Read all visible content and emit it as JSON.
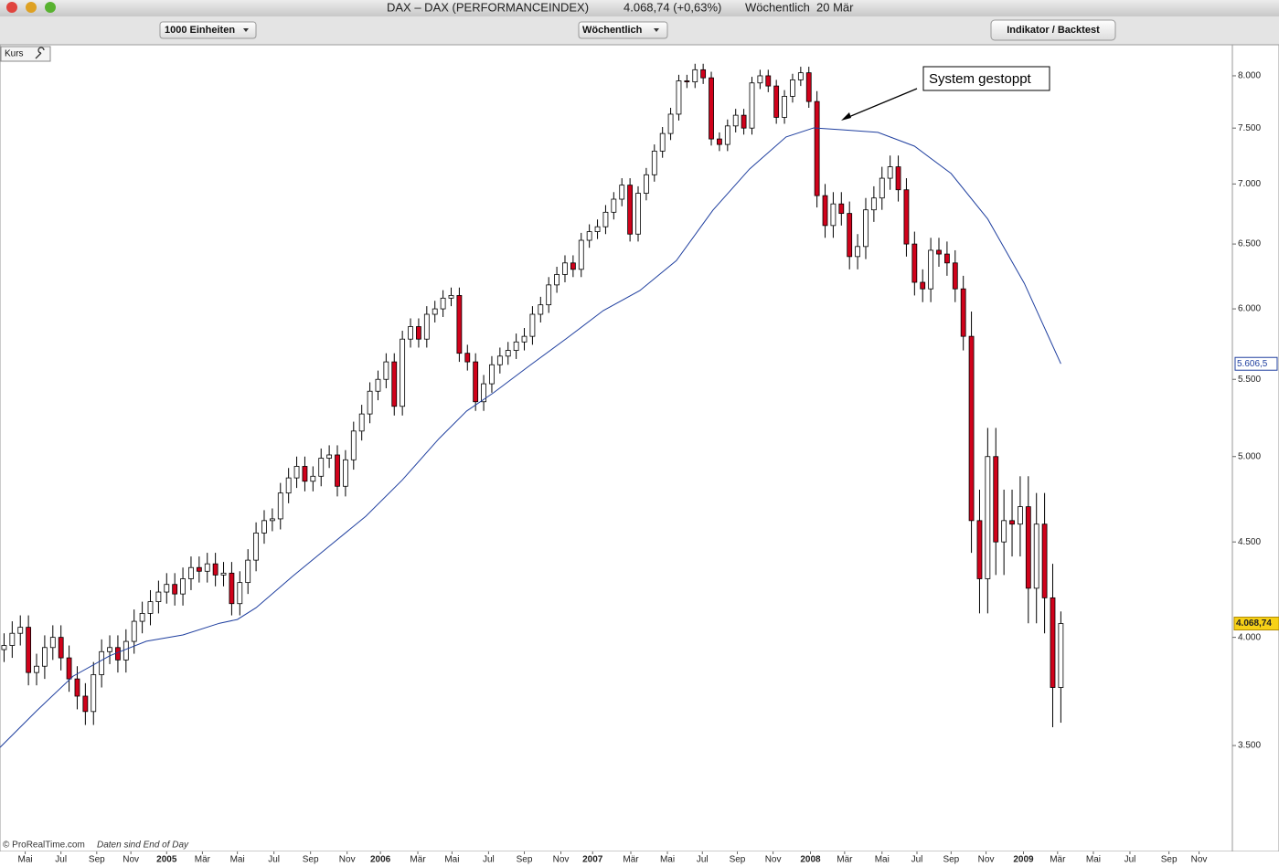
{
  "window": {
    "title": "DAX – DAX (PERFORMANCEINDEX)",
    "quote": "4.068,74 (+0,63%)",
    "period": "Wöchentlich  20 Mär"
  },
  "toolbar": {
    "units": "1000 Einheiten",
    "interval": "Wöchentlich",
    "indicator": "Indikator / Backtest"
  },
  "footer": {
    "source": "© ProRealTime.com",
    "note": "Daten sind End of Day"
  },
  "chart_data": {
    "type": "candlestick",
    "panel": "Kurs",
    "annotation": "System gestoppt",
    "log_scale": true,
    "xlim": [
      -0.5,
      151.1
    ],
    "xticks": [
      {
        "value": 2.6,
        "label": "Mai"
      },
      {
        "value": 7.0,
        "label": "Jul"
      },
      {
        "value": 11.4,
        "label": "Sep"
      },
      {
        "value": 15.6,
        "label": "Nov"
      },
      {
        "value": 20.0,
        "label": "2005"
      },
      {
        "value": 24.4,
        "label": "Mär"
      },
      {
        "value": 28.7,
        "label": "Mai"
      },
      {
        "value": 33.2,
        "label": "Jul"
      },
      {
        "value": 37.7,
        "label": "Sep"
      },
      {
        "value": 42.2,
        "label": "Nov"
      },
      {
        "value": 46.3,
        "label": "2006"
      },
      {
        "value": 50.9,
        "label": "Mär"
      },
      {
        "value": 55.1,
        "label": "Mai"
      },
      {
        "value": 59.6,
        "label": "Jul"
      },
      {
        "value": 64.0,
        "label": "Sep"
      },
      {
        "value": 68.5,
        "label": "Nov"
      },
      {
        "value": 72.4,
        "label": "2007"
      },
      {
        "value": 77.1,
        "label": "Mär"
      },
      {
        "value": 81.6,
        "label": "Mai"
      },
      {
        "value": 85.9,
        "label": "Jul"
      },
      {
        "value": 90.2,
        "label": "Sep"
      },
      {
        "value": 94.6,
        "label": "Nov"
      },
      {
        "value": 99.2,
        "label": "2008"
      },
      {
        "value": 103.4,
        "label": "Mär"
      },
      {
        "value": 108.0,
        "label": "Mai"
      },
      {
        "value": 112.3,
        "label": "Jul"
      },
      {
        "value": 116.5,
        "label": "Sep"
      },
      {
        "value": 120.8,
        "label": "Nov"
      },
      {
        "value": 125.4,
        "label": "2009"
      },
      {
        "value": 129.6,
        "label": "Mär"
      },
      {
        "value": 134.0,
        "label": "Mai"
      },
      {
        "value": 138.5,
        "label": "Jul"
      },
      {
        "value": 143.3,
        "label": "Sep"
      },
      {
        "value": 147.0,
        "label": "Nov"
      }
    ],
    "ylim": [
      3071,
      8303
    ],
    "yticks": [
      {
        "value": 3500,
        "label": "3.500"
      },
      {
        "value": 4000,
        "label": "4.000"
      },
      {
        "value": 4500,
        "label": "4.500"
      },
      {
        "value": 5000,
        "label": "5.000"
      },
      {
        "value": 5500,
        "label": "5.500"
      },
      {
        "value": 6000,
        "label": "6.000"
      },
      {
        "value": 6500,
        "label": "6.500"
      },
      {
        "value": 7000,
        "label": "7.000"
      },
      {
        "value": 7500,
        "label": "7.500"
      },
      {
        "value": 8000,
        "label": "8.000"
      }
    ],
    "candles": {
      "up_color": "#ffffff",
      "down_color": "#d0021b",
      "close_label": "4.068,74",
      "open": [
        3940,
        3960,
        4020,
        4050,
        3830,
        3860,
        3950,
        4000,
        3900,
        3800,
        3720,
        3650,
        3820,
        3930,
        3950,
        3890,
        3980,
        4080,
        4120,
        4180,
        4230,
        4270,
        4220,
        4300,
        4360,
        4340,
        4380,
        4320,
        4330,
        4170,
        4280,
        4400,
        4550,
        4620,
        4630,
        4780,
        4870,
        4940,
        4850,
        4880,
        4990,
        5010,
        4820,
        4980,
        5160,
        5270,
        5420,
        5500,
        5620,
        5320,
        5780,
        5870,
        5780,
        5960,
        6000,
        6080,
        6100,
        5680,
        5620,
        5350,
        5470,
        5600,
        5660,
        5700,
        5760,
        5800,
        5960,
        6030,
        6180,
        6260,
        6350,
        6300,
        6530,
        6600,
        6640,
        6760,
        6870,
        6990,
        6580,
        6920,
        7080,
        7290,
        7450,
        7630,
        7950,
        7940,
        8060,
        7980,
        7400,
        7350,
        7520,
        7620,
        7500,
        7930,
        8000,
        7900,
        7600,
        7800,
        7960,
        8030,
        7750,
        6900,
        6650,
        6830,
        6750,
        6400,
        6480,
        6780,
        6880,
        7050,
        7150,
        6950,
        6500,
        6200,
        6150,
        6450,
        6420,
        6350,
        6150,
        5800,
        4620,
        4300,
        5000,
        4500,
        4620,
        4600,
        4700,
        4250,
        4600,
        4200,
        3760
      ],
      "high": [
        4020,
        4080,
        4110,
        4110,
        3920,
        4010,
        4060,
        4060,
        3960,
        3860,
        3780,
        3880,
        3990,
        4010,
        4010,
        4040,
        4140,
        4180,
        4240,
        4290,
        4330,
        4330,
        4360,
        4420,
        4420,
        4440,
        4440,
        4390,
        4390,
        4340,
        4460,
        4610,
        4680,
        4690,
        4840,
        4930,
        5000,
        5000,
        4940,
        5050,
        5070,
        5070,
        5040,
        5220,
        5330,
        5480,
        5560,
        5680,
        5680,
        5840,
        5930,
        5930,
        6020,
        6060,
        6140,
        6160,
        6160,
        5740,
        5680,
        5530,
        5660,
        5720,
        5760,
        5820,
        5860,
        6020,
        6090,
        6240,
        6320,
        6410,
        6410,
        6590,
        6660,
        6700,
        6820,
        6930,
        7050,
        7050,
        6980,
        7140,
        7350,
        7510,
        7690,
        8010,
        8010,
        8120,
        8120,
        8040,
        7460,
        7580,
        7680,
        7680,
        7990,
        8060,
        8060,
        7960,
        7860,
        8020,
        8090,
        8090,
        7850,
        7000,
        6930,
        6930,
        6850,
        6580,
        6880,
        6980,
        7150,
        7250,
        7250,
        7050,
        6600,
        6300,
        6550,
        6550,
        6520,
        6450,
        6250,
        5980,
        4800,
        5180,
        5180,
        4800,
        4800,
        4880,
        4880,
        4780,
        4780,
        4380,
        4130
      ],
      "low": [
        3880,
        3900,
        3960,
        3770,
        3770,
        3800,
        3890,
        3840,
        3740,
        3660,
        3590,
        3590,
        3760,
        3870,
        3830,
        3830,
        3920,
        4020,
        4060,
        4120,
        4170,
        4160,
        4160,
        4240,
        4280,
        4280,
        4260,
        4260,
        4110,
        4110,
        4220,
        4340,
        4490,
        4560,
        4570,
        4720,
        4810,
        4790,
        4790,
        4820,
        4930,
        4760,
        4760,
        4920,
        5100,
        5210,
        5360,
        5440,
        5260,
        5260,
        5720,
        5720,
        5720,
        5900,
        5940,
        6020,
        5620,
        5560,
        5290,
        5290,
        5410,
        5540,
        5600,
        5640,
        5700,
        5740,
        5900,
        5970,
        6120,
        6200,
        6240,
        6240,
        6470,
        6540,
        6580,
        6700,
        6810,
        6520,
        6520,
        6860,
        7020,
        7230,
        7390,
        7570,
        7880,
        7880,
        7920,
        7340,
        7290,
        7290,
        7460,
        7440,
        7440,
        7870,
        7840,
        7540,
        7540,
        7740,
        7900,
        7690,
        6800,
        6550,
        6550,
        6650,
        6300,
        6300,
        6380,
        6680,
        6780,
        6950,
        6850,
        6400,
        6100,
        6050,
        6050,
        6320,
        6250,
        6050,
        5700,
        4440,
        4120,
        4120,
        4320,
        4320,
        4420,
        4420,
        4070,
        4070,
        4020,
        3580,
        3600
      ],
      "close": [
        3960,
        4020,
        4050,
        3830,
        3860,
        3950,
        4000,
        3900,
        3800,
        3720,
        3650,
        3820,
        3930,
        3950,
        3890,
        3980,
        4080,
        4120,
        4180,
        4230,
        4270,
        4220,
        4300,
        4360,
        4340,
        4380,
        4320,
        4330,
        4170,
        4280,
        4400,
        4550,
        4620,
        4630,
        4780,
        4870,
        4940,
        4850,
        4880,
        4990,
        5010,
        4820,
        4980,
        5160,
        5270,
        5420,
        5500,
        5620,
        5320,
        5780,
        5870,
        5780,
        5960,
        6000,
        6080,
        6100,
        5680,
        5620,
        5350,
        5470,
        5600,
        5660,
        5700,
        5760,
        5800,
        5960,
        6030,
        6180,
        6260,
        6350,
        6300,
        6530,
        6600,
        6640,
        6760,
        6870,
        6990,
        6580,
        6920,
        7080,
        7290,
        7450,
        7630,
        7950,
        7940,
        8060,
        7980,
        7400,
        7350,
        7520,
        7620,
        7500,
        7930,
        8000,
        7900,
        7600,
        7800,
        7960,
        8030,
        7750,
        6900,
        6650,
        6830,
        6750,
        6400,
        6480,
        6780,
        6880,
        7050,
        7150,
        6950,
        6500,
        6200,
        6150,
        6450,
        6420,
        6350,
        6150,
        5800,
        4620,
        4300,
        5000,
        4500,
        4620,
        4600,
        4700,
        4250,
        4600,
        4200,
        3760,
        4068.74
      ]
    },
    "moving_average": {
      "color": "#1f3f9f",
      "value_label": "5.606,5",
      "x": [
        -0.5,
        4,
        8.5,
        13,
        17.5,
        22,
        26.5,
        28.7,
        31,
        35.5,
        40,
        44.5,
        49,
        53.5,
        56.9,
        60.2,
        64.7,
        69.2,
        73.7,
        78.2,
        82.7,
        87.2,
        91.7,
        96.2,
        99.6,
        103,
        107.5,
        112,
        116.5,
        121,
        125.5,
        130
      ],
      "values": [
        3492,
        3653,
        3813,
        3910,
        3981,
        4012,
        4070,
        4089,
        4149,
        4313,
        4476,
        4645,
        4858,
        5112,
        5289,
        5409,
        5596,
        5785,
        5987,
        6137,
        6368,
        6777,
        7130,
        7418,
        7502,
        7485,
        7460,
        7334,
        7091,
        6704,
        6192,
        5606.5
      ]
    }
  }
}
